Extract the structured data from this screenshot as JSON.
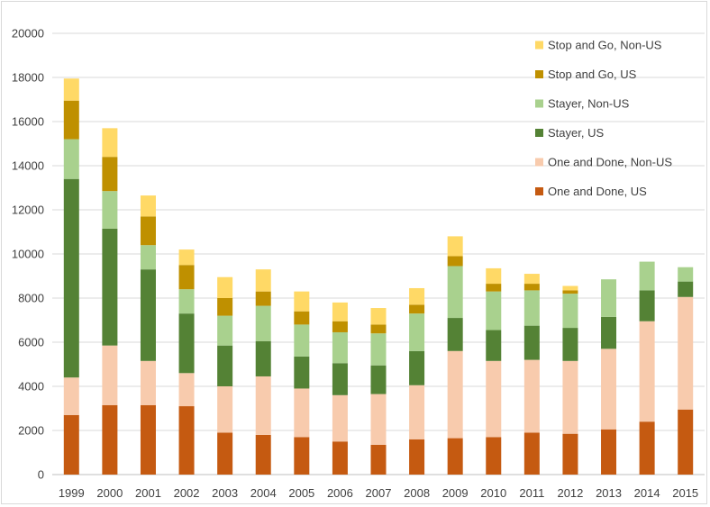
{
  "chart_data": {
    "type": "bar",
    "stacked": true,
    "title": "",
    "xlabel": "",
    "ylabel": "",
    "ylim": [
      0,
      20000
    ],
    "yticks": [
      0,
      2000,
      4000,
      6000,
      8000,
      10000,
      12000,
      14000,
      16000,
      18000,
      20000
    ],
    "grid": "horizontal",
    "legend_position": "top-right",
    "categories": [
      "1999",
      "2000",
      "2001",
      "2002",
      "2003",
      "2004",
      "2005",
      "2006",
      "2007",
      "2008",
      "2009",
      "2010",
      "2011",
      "2012",
      "2013",
      "2014",
      "2015"
    ],
    "series": [
      {
        "name": "One and Done, US",
        "color": "#c55a11",
        "values": [
          2700,
          3150,
          3150,
          3100,
          1900,
          1800,
          1700,
          1500,
          1350,
          1600,
          1650,
          1700,
          1900,
          1850,
          2050,
          2400,
          2950
        ]
      },
      {
        "name": "One and Done, Non-US",
        "color": "#f8cbad",
        "values": [
          1700,
          2700,
          2000,
          1500,
          2100,
          2650,
          2200,
          2100,
          2300,
          2450,
          3950,
          3450,
          3300,
          3300,
          3650,
          4550,
          5100
        ]
      },
      {
        "name": "Stayer, US",
        "color": "#548235",
        "values": [
          9000,
          5300,
          4150,
          2700,
          1850,
          1600,
          1450,
          1450,
          1300,
          1550,
          1500,
          1400,
          1550,
          1500,
          1450,
          1400,
          700
        ]
      },
      {
        "name": "Stayer, Non-US",
        "color": "#a9d18e",
        "values": [
          1800,
          1700,
          1100,
          1100,
          1350,
          1600,
          1450,
          1400,
          1450,
          1700,
          2350,
          1750,
          1600,
          1550,
          1700,
          1300,
          650
        ]
      },
      {
        "name": "Stop and Go, US",
        "color": "#bf9000",
        "values": [
          1750,
          1550,
          1300,
          1100,
          800,
          650,
          600,
          500,
          400,
          400,
          450,
          350,
          300,
          150,
          0,
          0,
          0
        ]
      },
      {
        "name": "Stop and Go, Non-US",
        "color": "#ffd966",
        "values": [
          1000,
          1300,
          950,
          700,
          950,
          1000,
          900,
          850,
          750,
          750,
          900,
          700,
          450,
          200,
          0,
          0,
          0
        ]
      }
    ]
  }
}
